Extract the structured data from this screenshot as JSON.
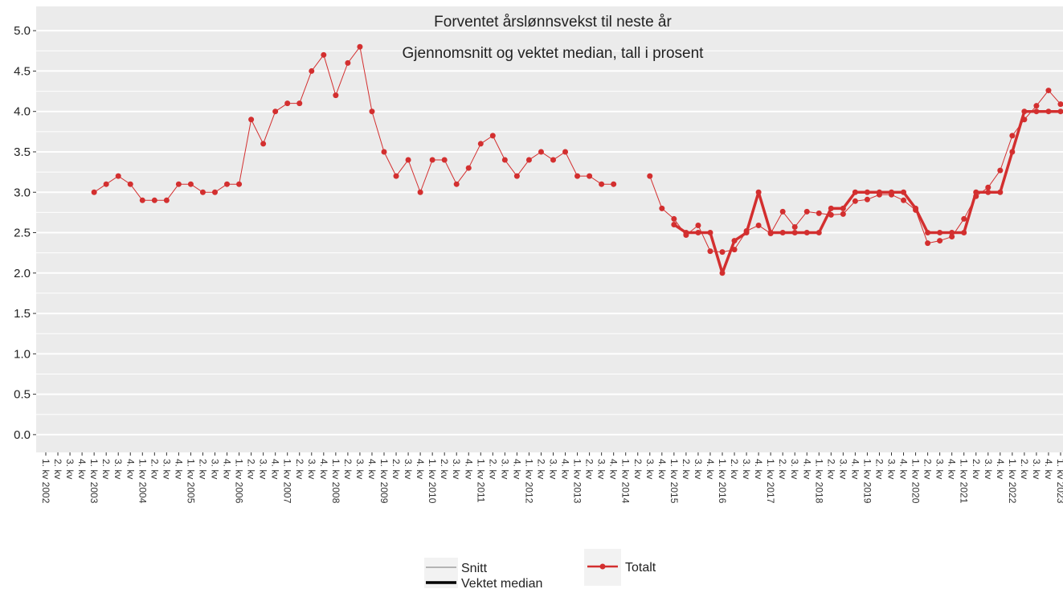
{
  "chart_data": {
    "type": "line",
    "title": "Forventet årslønnsvekst til neste år",
    "subtitle": "Gjennomsnitt og vektet median, tall i prosent",
    "categories": [
      "1. kv 2002",
      "2. kv",
      "3. kv",
      "4. kv",
      "1. kv 2003",
      "2. kv",
      "3. kv",
      "4. kv",
      "1. kv 2004",
      "2. kv",
      "3. kv",
      "4. kv",
      "1. kv 2005",
      "2. kv",
      "3. kv",
      "4. kv",
      "1. kv 2006",
      "2. kv",
      "3. kv",
      "4. kv",
      "1. kv 2007",
      "2. kv",
      "3. kv",
      "4. kv",
      "1. kv 2008",
      "2. kv",
      "3. kv",
      "4. kv",
      "1. kv 2009",
      "2. kv",
      "3. kv",
      "4. kv",
      "1. kv 2010",
      "2. kv",
      "3. kv",
      "4. kv",
      "1. kv 2011",
      "2. kv",
      "3. kv",
      "4. kv",
      "1. kv 2012",
      "2. kv",
      "3. kv",
      "4. kv",
      "1. kv 2013",
      "2. kv",
      "3. kv",
      "4. kv",
      "1. kv 2014",
      "2. kv",
      "3. kv",
      "4. kv",
      "1. kv 2015",
      "2. kv",
      "3. kv",
      "4. kv",
      "1. kv 2016",
      "2. kv",
      "3. kv",
      "4. kv",
      "1. kv 2017",
      "2. kv",
      "3. kv",
      "4. kv",
      "1. kv 2018",
      "2. kv",
      "3. kv",
      "4. kv",
      "1. kv 2019",
      "2. kv",
      "3. kv",
      "4. kv",
      "1. kv 2020",
      "2. kv",
      "3. kv",
      "4. kv",
      "1. kv 2021",
      "2. kv",
      "3. kv",
      "4. kv",
      "1. kv 2022",
      "2. kv",
      "3. kv",
      "4. kv",
      "1. kv 2023"
    ],
    "series": [
      {
        "name": "Snitt",
        "color": "#d32f2f",
        "width": 1,
        "values": [
          null,
          null,
          null,
          null,
          3.0,
          3.1,
          3.2,
          3.1,
          2.9,
          2.9,
          2.9,
          3.1,
          3.1,
          3.0,
          3.0,
          3.1,
          3.1,
          3.9,
          3.6,
          4.0,
          4.1,
          4.1,
          4.5,
          4.7,
          4.2,
          4.6,
          4.8,
          4.0,
          3.5,
          3.2,
          3.4,
          3.0,
          3.4,
          3.4,
          3.1,
          3.3,
          3.6,
          3.7,
          3.4,
          3.2,
          3.4,
          3.5,
          3.4,
          3.5,
          3.2,
          3.2,
          3.1,
          3.1,
          null,
          null,
          3.2,
          2.8,
          2.67,
          2.47,
          2.59,
          2.27,
          2.26,
          2.29,
          2.52,
          2.59,
          2.49,
          2.76,
          2.57,
          2.76,
          2.74,
          2.72,
          2.73,
          2.89,
          2.91,
          2.97,
          2.97,
          2.9,
          2.78,
          2.37,
          2.4,
          2.45,
          2.67,
          2.95,
          3.06,
          3.27,
          3.7,
          3.9,
          4.07,
          4.26,
          4.09
        ]
      },
      {
        "name": "Vektet median",
        "color": "#d32f2f",
        "width": 3.5,
        "values": [
          null,
          null,
          null,
          null,
          null,
          null,
          null,
          null,
          null,
          null,
          null,
          null,
          null,
          null,
          null,
          null,
          null,
          null,
          null,
          null,
          null,
          null,
          null,
          null,
          null,
          null,
          null,
          null,
          null,
          null,
          null,
          null,
          null,
          null,
          null,
          null,
          null,
          null,
          null,
          null,
          null,
          null,
          null,
          null,
          null,
          null,
          null,
          null,
          null,
          null,
          null,
          null,
          2.6,
          2.5,
          2.5,
          2.5,
          2.0,
          2.4,
          2.5,
          3.0,
          2.5,
          2.5,
          2.5,
          2.5,
          2.5,
          2.8,
          2.8,
          3.0,
          3.0,
          3.0,
          3.0,
          3.0,
          2.8,
          2.5,
          2.5,
          2.5,
          2.5,
          3.0,
          3.0,
          3.0,
          3.5,
          4.0,
          4.0,
          4.0,
          4.0
        ]
      }
    ],
    "color_legend": "Totalt",
    "ylim": [
      -0.22,
      5.3
    ],
    "yticks": [
      {
        "value": 0,
        "label": "0.0"
      },
      0.5,
      {
        "value": 1,
        "label": "1.0"
      },
      1.5,
      {
        "value": 2,
        "label": "2.0"
      },
      2.5,
      {
        "value": 3,
        "label": "3.0"
      },
      3.5,
      {
        "value": 4,
        "label": "4.0"
      },
      4.5,
      {
        "value": 5,
        "label": "5.0"
      }
    ],
    "grid": true
  }
}
